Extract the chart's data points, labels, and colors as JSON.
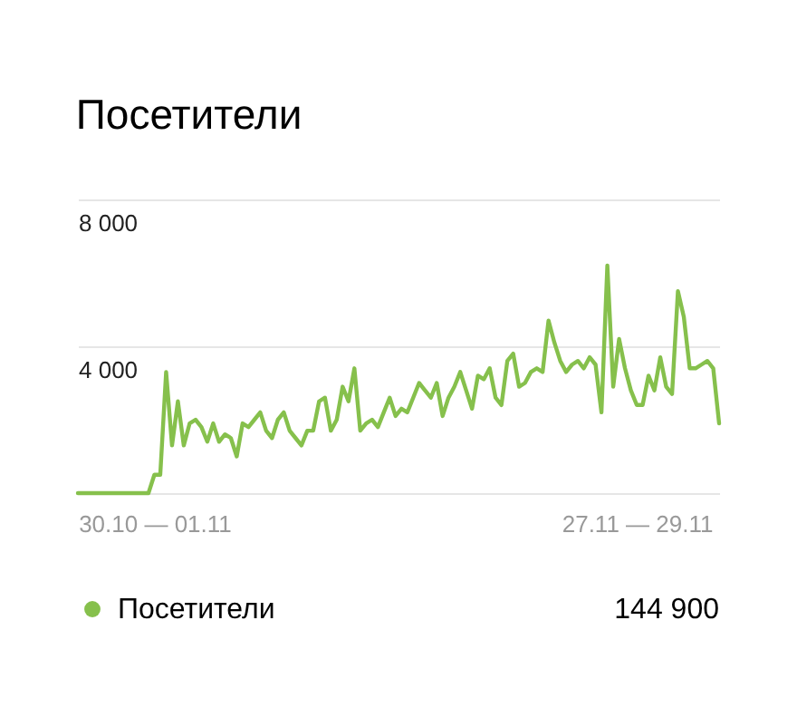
{
  "chart_data": {
    "type": "line",
    "title": "Посетители",
    "categories": [
      null,
      null,
      null,
      null,
      null,
      null,
      null,
      null,
      null,
      null,
      null,
      null,
      null,
      "30.10 — 01.11",
      null,
      null,
      null,
      null,
      null,
      null,
      null,
      null,
      null,
      null,
      null,
      null,
      null,
      null,
      null,
      null,
      null,
      null,
      null,
      null,
      null,
      null,
      null,
      null,
      null,
      null,
      null,
      null,
      null,
      null,
      null,
      null,
      null,
      null,
      null,
      null,
      null,
      null,
      null,
      null,
      null,
      null,
      null,
      null,
      null,
      null,
      null,
      null,
      null,
      null,
      null,
      null,
      null,
      null,
      null,
      null,
      null,
      null,
      null,
      null,
      null,
      null,
      null,
      null,
      null,
      null,
      null,
      null,
      null,
      null,
      null,
      null,
      null,
      null,
      null,
      null,
      null,
      null,
      null,
      null,
      null,
      "27.11 — 29.11",
      null,
      null,
      null,
      null,
      null,
      null,
      null,
      null,
      null,
      null,
      null,
      null,
      null,
      null
    ],
    "series": [
      {
        "name": "Посетители",
        "color": "#86c04c",
        "values": [
          0,
          0,
          0,
          0,
          0,
          0,
          0,
          0,
          0,
          0,
          0,
          0,
          0,
          500,
          500,
          3300,
          1300,
          2500,
          1300,
          1900,
          2000,
          1800,
          1400,
          1900,
          1400,
          1600,
          1500,
          1000,
          1900,
          1800,
          2000,
          2200,
          1700,
          1500,
          2000,
          2200,
          1700,
          1500,
          1300,
          1700,
          1700,
          2500,
          2600,
          1700,
          2000,
          2900,
          2500,
          3400,
          1700,
          1900,
          2000,
          1800,
          2200,
          2600,
          2100,
          2300,
          2200,
          2600,
          3000,
          2800,
          2600,
          3000,
          2100,
          2600,
          2900,
          3300,
          2800,
          2300,
          3200,
          3100,
          3400,
          2600,
          2400,
          3600,
          3800,
          2900,
          3000,
          3300,
          3400,
          3300,
          4700,
          4100,
          3600,
          3300,
          3500,
          3600,
          3400,
          3700,
          3500,
          2200,
          6200,
          2900,
          4200,
          3400,
          2800,
          2400,
          2400,
          3200,
          2800,
          3700,
          2900,
          2700,
          5500,
          4800,
          3400,
          3400,
          3500,
          3600,
          3400,
          1900
        ]
      }
    ],
    "ylim": [
      0,
      8000
    ],
    "yticks": [
      {
        "value": 0,
        "label": null
      },
      {
        "value": 4000,
        "label": "4 000"
      },
      {
        "value": 8000,
        "label": "8 000"
      }
    ],
    "grid": "y",
    "legend": "bottom left",
    "line_style": "solid",
    "annotations": [
      "144 900"
    ]
  }
}
